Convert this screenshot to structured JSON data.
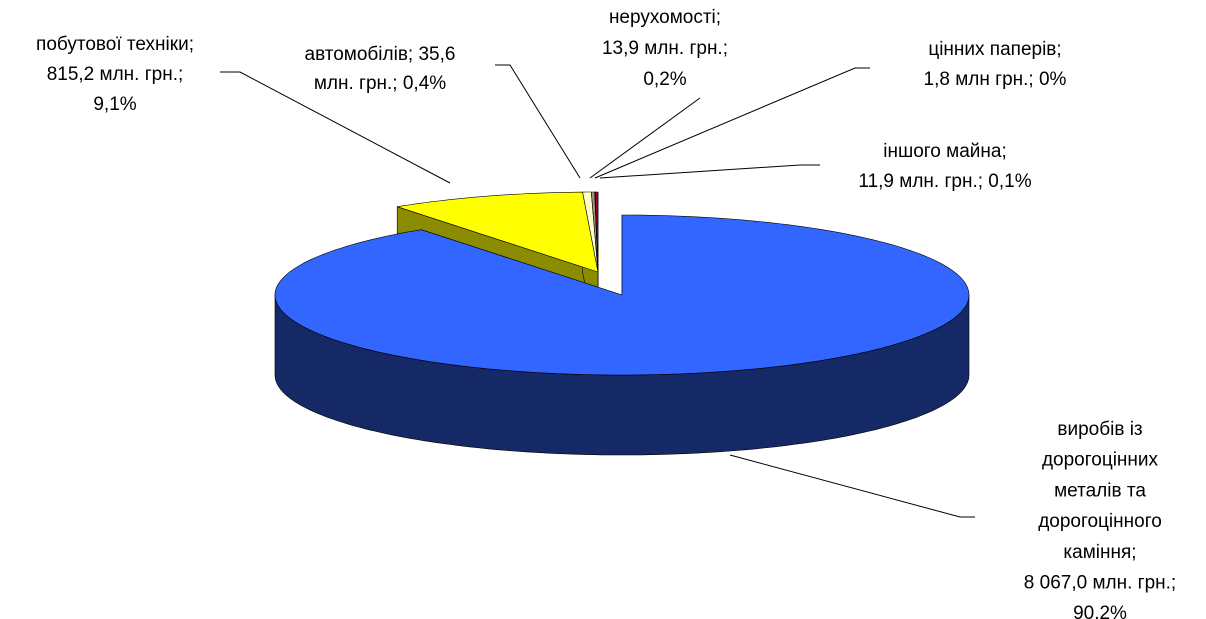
{
  "chart_data": {
    "type": "pie3d",
    "categories": [
      "виробів із дорогоцінних металів та дорогоцінного каміння",
      "побутової техніки",
      "автомобілів",
      "нерухомості",
      "цінних паперів",
      "іншого майна"
    ],
    "values": [
      8067.0,
      815.2,
      35.6,
      13.9,
      1.8,
      11.9
    ],
    "value_labels": [
      [
        "виробів із",
        "дорогоцінних",
        "металів та",
        "дорогоцінного",
        "каміння;",
        "8 067,0 млн. грн.;",
        "90,2%"
      ],
      [
        "побутової техніки;",
        "815,2 млн. грн.;",
        "9,1%"
      ],
      [
        "автомобілів; 35,6",
        "млн. грн.; 0,4%"
      ],
      [
        "нерухомості;",
        "13,9 млн. грн.;",
        "0,2%"
      ],
      [
        "цінних паперів;",
        "1,8 млн грн.; 0%"
      ],
      [
        "іншого майна;",
        "11,9 млн. грн.; 0,1%"
      ]
    ],
    "colors": [
      "#3366ff",
      "#ffff00",
      "#ffffcc",
      "#999977",
      "#660066",
      "#990033"
    ]
  }
}
